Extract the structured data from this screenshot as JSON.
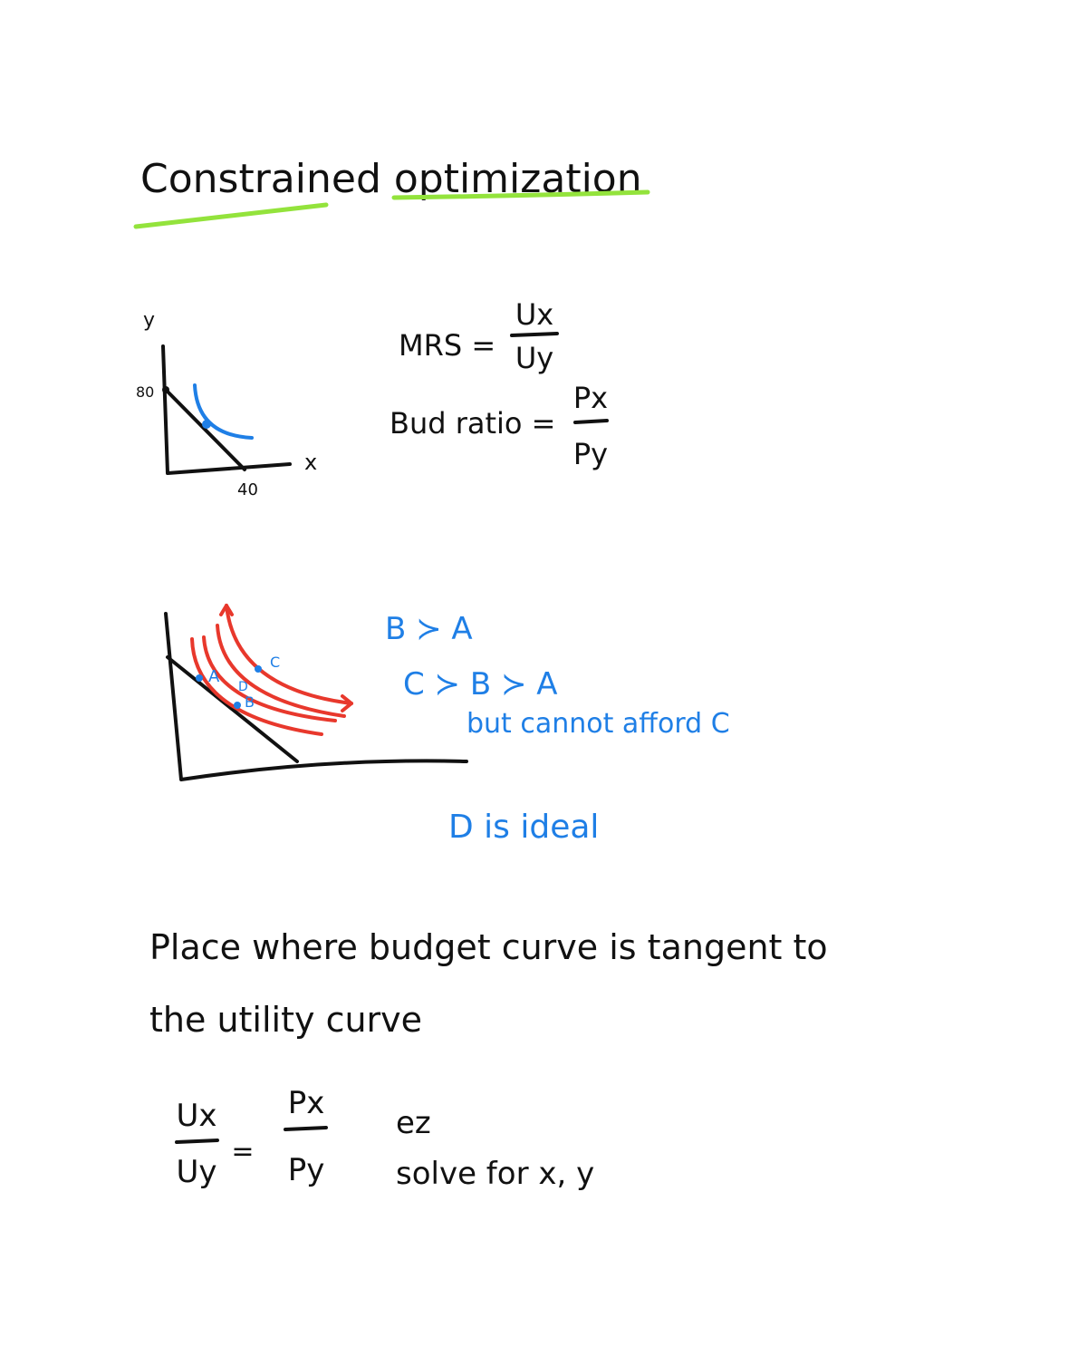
{
  "title": "Constrained optimization",
  "graph1": {
    "y_label": "y",
    "x_label": "x",
    "y_intercept": 80,
    "x_intercept": 40
  },
  "formulas": {
    "mrs": {
      "label": "MRS =",
      "numerator": "Ux",
      "denominator": "Uy"
    },
    "budget_ratio": {
      "label": "Bud ratio =",
      "numerator": "Px",
      "denominator": "Py"
    }
  },
  "graph2": {
    "points": [
      "A",
      "B",
      "C",
      "D"
    ]
  },
  "notes": [
    "B ≻ A",
    "C ≻ B ≻ A",
    "but cannot afford C",
    "D is ideal"
  ],
  "conclusion": [
    "Place where budget curve is tangent to",
    "the utility curve"
  ],
  "equation": {
    "lhs_num": "Ux",
    "lhs_den": "Uy",
    "eq": "=",
    "rhs_num": "Px",
    "rhs_den": "Py",
    "notes": [
      "ez",
      "solve for x, y"
    ]
  }
}
